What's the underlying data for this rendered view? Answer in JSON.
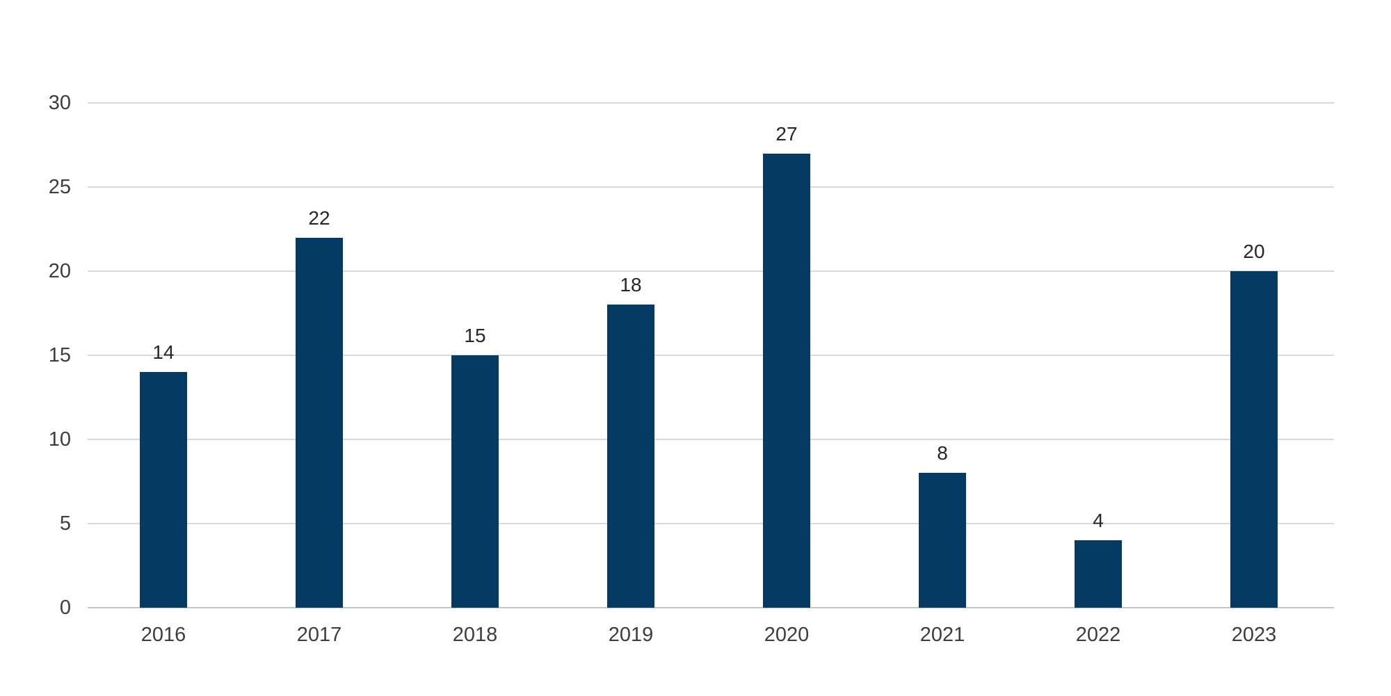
{
  "chart_data": {
    "type": "bar",
    "categories": [
      "2016",
      "2017",
      "2018",
      "2019",
      "2020",
      "2021",
      "2022",
      "2023"
    ],
    "values": [
      14,
      22,
      15,
      18,
      27,
      8,
      4,
      20
    ],
    "value_labels": [
      "14",
      "22",
      "15",
      "18",
      "27",
      "8",
      "4",
      "20"
    ],
    "yticks": [
      0,
      5,
      10,
      15,
      20,
      25,
      30
    ],
    "ytick_labels": [
      "0",
      "5",
      "10",
      "15",
      "20",
      "25",
      "30"
    ],
    "ylim": [
      0,
      30
    ],
    "title": "",
    "xlabel": "",
    "ylabel": "",
    "legend_position": "none",
    "grid": "horizontal",
    "colors": {
      "bar": "#053a63",
      "gridline": "#d9d9d9",
      "axis_line": "#c6c6c6",
      "tick_label": "#3d3d3d",
      "value_label": "#262626",
      "background": "#ffffff"
    }
  }
}
